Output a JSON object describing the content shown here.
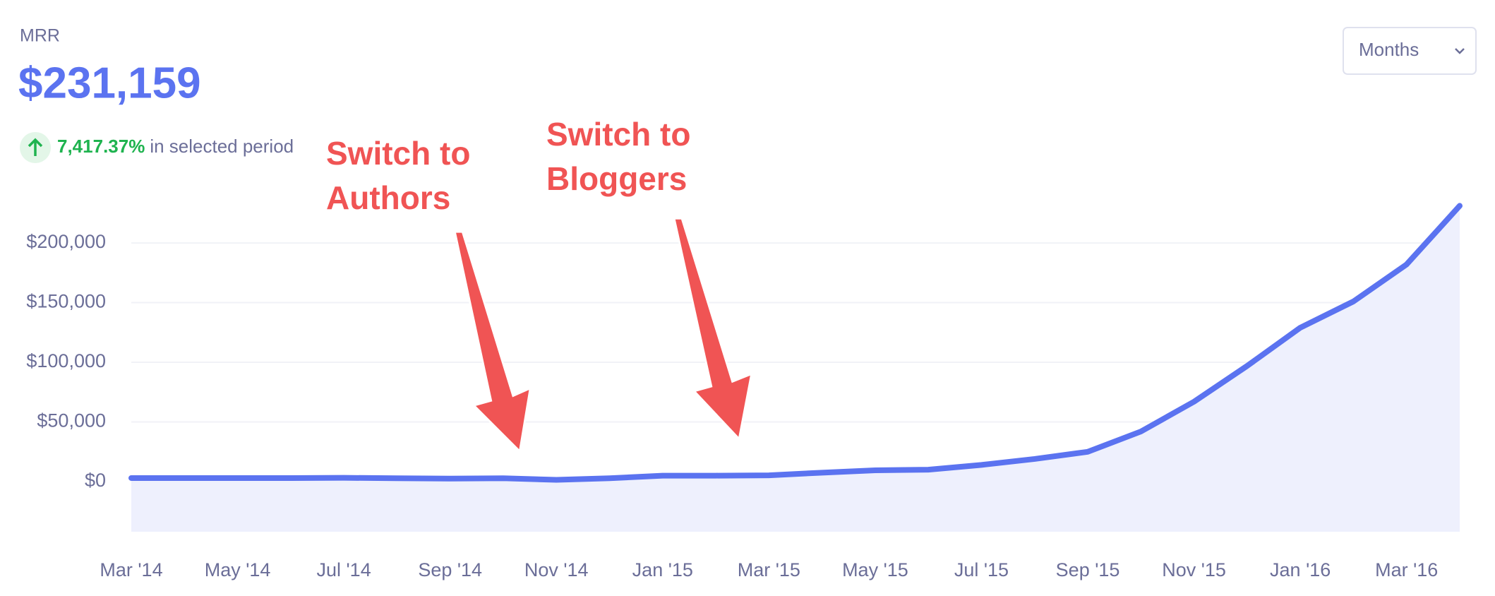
{
  "header": {
    "metric": "MRR",
    "value": "$231,159",
    "change": "7,417.37%",
    "change_text": "in selected period"
  },
  "dropdown": {
    "label": "Months"
  },
  "annotations": [
    {
      "lines": [
        "Switch to",
        "Authors"
      ]
    },
    {
      "lines": [
        "Switch to",
        "Bloggers"
      ]
    }
  ],
  "chart_data": {
    "type": "line",
    "categories": [
      "Mar '14",
      null,
      "May '14",
      null,
      "Jul '14",
      null,
      "Sep '14",
      null,
      "Nov '14",
      null,
      "Jan '15",
      null,
      "Mar '15",
      null,
      "May '15",
      null,
      "Jul '15",
      null,
      "Sep '15",
      null,
      "Nov '15",
      null,
      "Jan '16",
      null,
      "Mar '16",
      null
    ],
    "series": [
      {
        "name": "MRR",
        "color": "#5b73f0",
        "values": [
          3000,
          3000,
          3000,
          3000,
          3200,
          2800,
          2500,
          2800,
          1500,
          2800,
          5000,
          5000,
          5300,
          7500,
          9500,
          10000,
          14000,
          19000,
          25000,
          42000,
          67000,
          97000,
          129000,
          151000,
          182000,
          231159
        ]
      }
    ],
    "ylim": [
      -42000,
      232000
    ],
    "yticks": [
      {
        "value": 0,
        "label": "$0"
      },
      {
        "value": 50000,
        "label": "$50,000"
      },
      {
        "value": 100000,
        "label": "$100,000"
      },
      {
        "value": 150000,
        "label": "$150,000"
      },
      {
        "value": 200000,
        "label": "$200,000"
      }
    ],
    "grid": true,
    "area_color": "#eef0fd"
  }
}
